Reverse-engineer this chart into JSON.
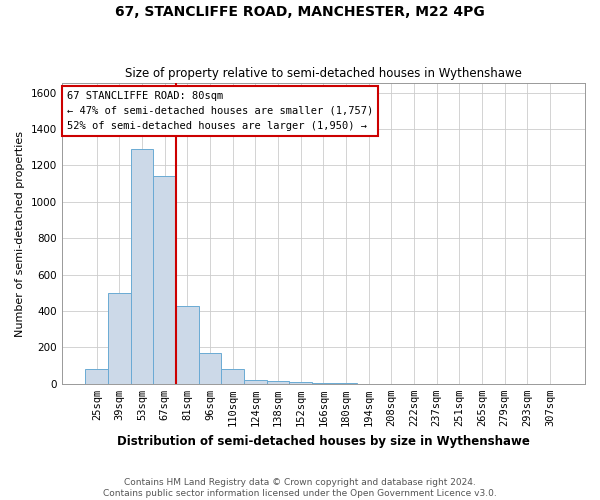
{
  "title": "67, STANCLIFFE ROAD, MANCHESTER, M22 4PG",
  "subtitle": "Size of property relative to semi-detached houses in Wythenshawe",
  "xlabel": "Distribution of semi-detached houses by size in Wythenshawe",
  "ylabel": "Number of semi-detached properties",
  "footer_line1": "Contains HM Land Registry data © Crown copyright and database right 2024.",
  "footer_line2": "Contains public sector information licensed under the Open Government Licence v3.0.",
  "annotation_line1": "67 STANCLIFFE ROAD: 80sqm",
  "annotation_line2": "← 47% of semi-detached houses are smaller (1,757)",
  "annotation_line3": "52% of semi-detached houses are larger (1,950) →",
  "bar_color": "#ccd9e8",
  "bar_edge_color": "#6aaad4",
  "vline_color": "#cc0000",
  "annotation_box_color": "#cc0000",
  "categories": [
    "25sqm",
    "39sqm",
    "53sqm",
    "67sqm",
    "81sqm",
    "96sqm",
    "110sqm",
    "124sqm",
    "138sqm",
    "152sqm",
    "166sqm",
    "180sqm",
    "194sqm",
    "208sqm",
    "222sqm",
    "237sqm",
    "251sqm",
    "265sqm",
    "279sqm",
    "293sqm",
    "307sqm"
  ],
  "values": [
    80,
    500,
    1290,
    1140,
    430,
    170,
    80,
    20,
    15,
    8,
    4,
    2,
    1,
    0,
    0,
    0,
    0,
    0,
    0,
    0,
    0
  ],
  "ylim": [
    0,
    1650
  ],
  "yticks": [
    0,
    200,
    400,
    600,
    800,
    1000,
    1200,
    1400,
    1600
  ],
  "vline_x": 3.5,
  "grid_color": "#cccccc",
  "title_fontsize": 10,
  "subtitle_fontsize": 8.5,
  "ylabel_fontsize": 8,
  "xlabel_fontsize": 8.5,
  "tick_fontsize": 7.5,
  "annotation_fontsize": 7.5,
  "footer_fontsize": 6.5
}
